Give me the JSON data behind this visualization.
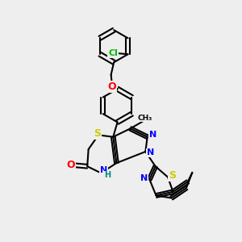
{
  "background_color": "#eeeeee",
  "figsize": [
    3.0,
    3.0
  ],
  "dpi": 100,
  "atom_colors": {
    "S": "#cccc00",
    "N": "#0000ff",
    "O": "#ff0000",
    "Cl": "#00bb00",
    "C": "#000000",
    "H": "#008888"
  },
  "bond_color": "#000000",
  "bond_width": 1.5
}
